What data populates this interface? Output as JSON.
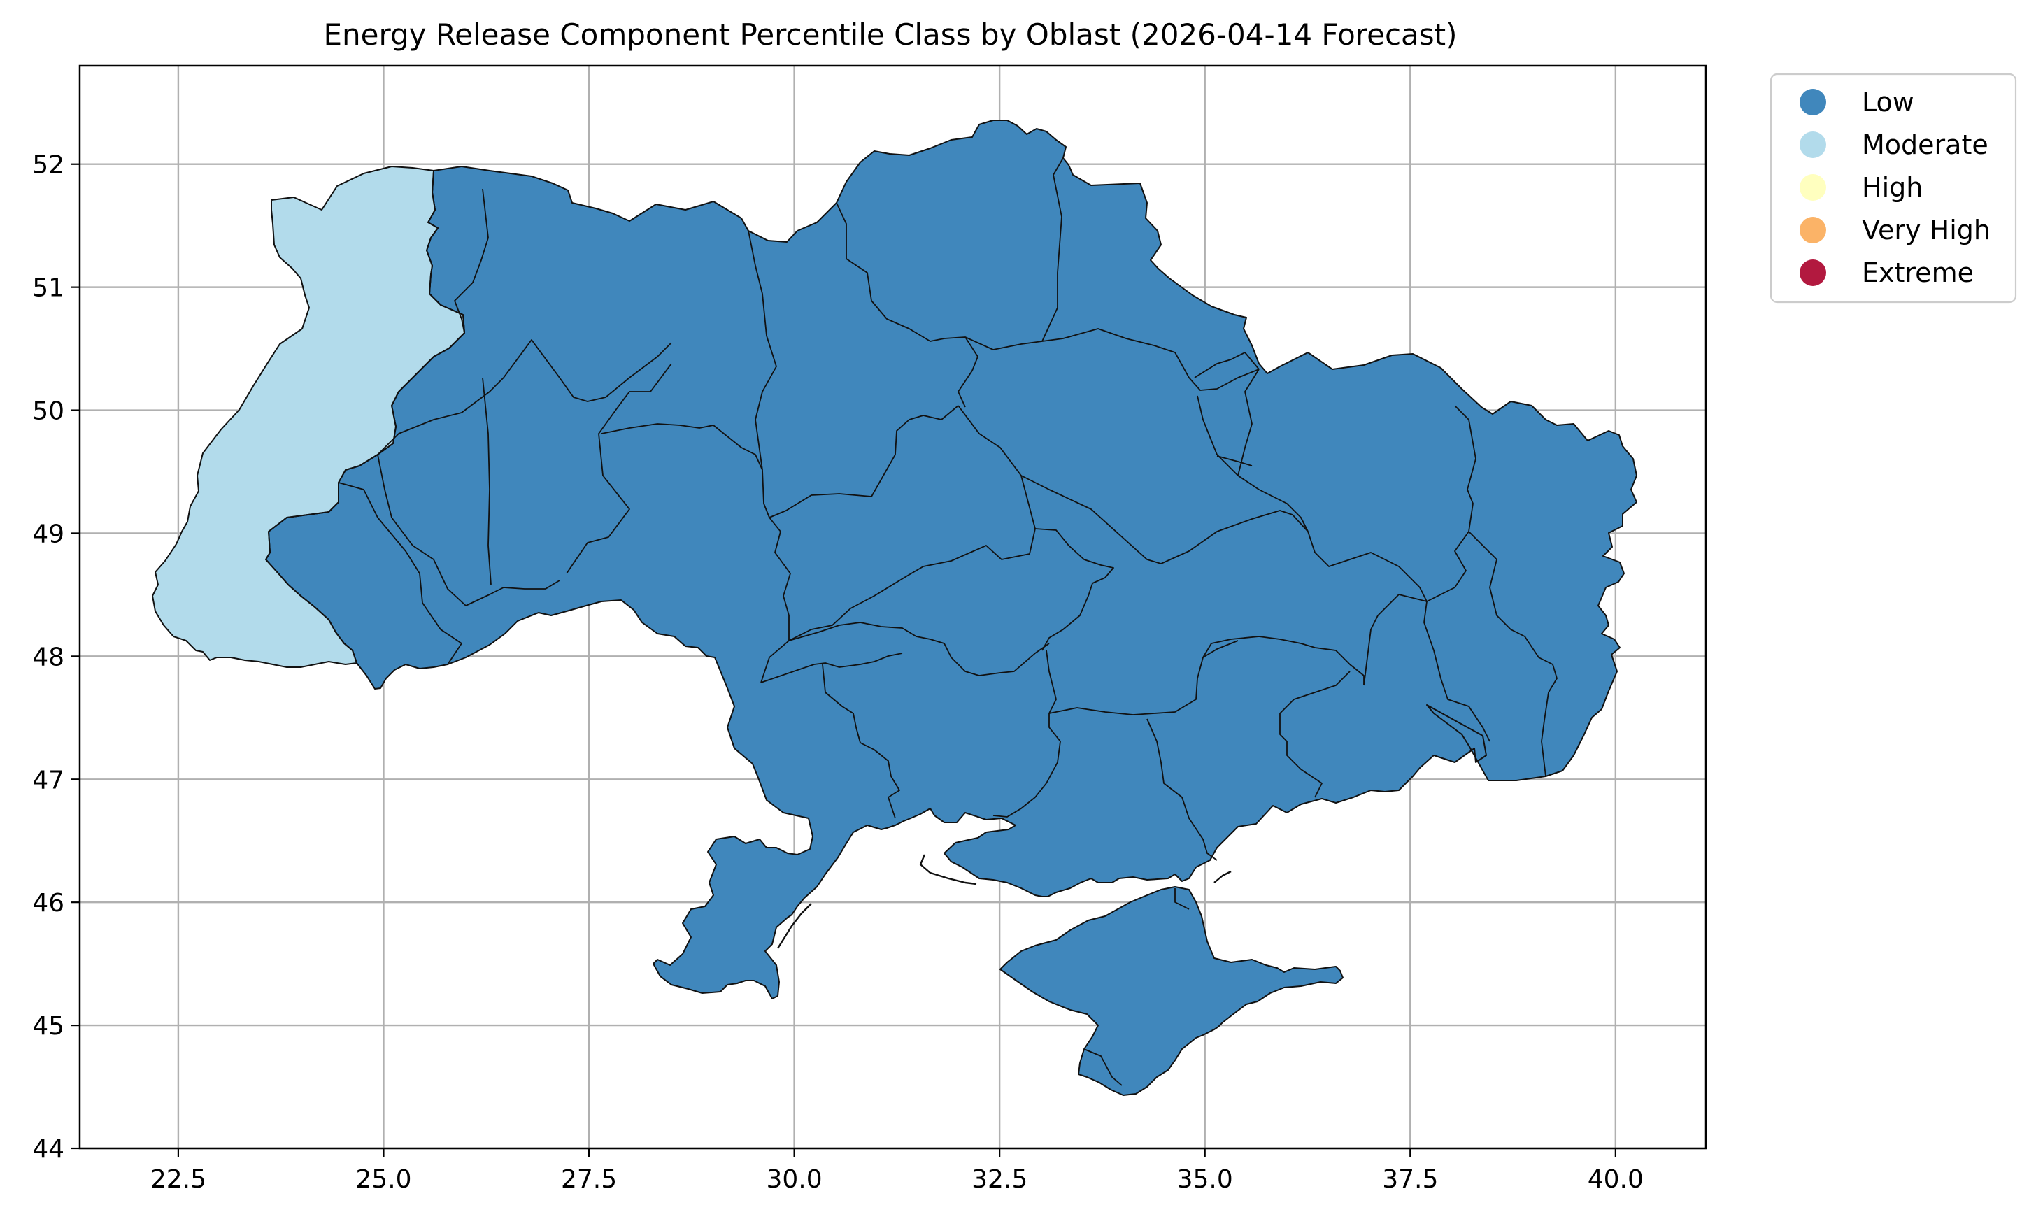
{
  "chart_data": {
    "type": "choropleth-map",
    "title": "Energy Release Component Percentile Class by Oblast (2026-04-14 Forecast)",
    "x_ticks": [
      "22.5",
      "25.0",
      "27.5",
      "30.0",
      "32.5",
      "35.0",
      "37.5",
      "40.0"
    ],
    "y_ticks": [
      "44",
      "45",
      "46",
      "47",
      "48",
      "49",
      "50",
      "51",
      "52"
    ],
    "xlim": [
      21.3,
      41.1
    ],
    "ylim": [
      44.0,
      52.8
    ],
    "grid": true,
    "legend": {
      "placement": "outside-top-right",
      "entries": [
        {
          "label": "Low",
          "color": "#4087bc"
        },
        {
          "label": "Moderate",
          "color": "#b2dbeb"
        },
        {
          "label": "High",
          "color": "#ffffbf"
        },
        {
          "label": "Very High",
          "color": "#fbb367"
        },
        {
          "label": "Extreme",
          "color": "#b2193f"
        }
      ]
    },
    "class_colors": {
      "Low": "#4087bc",
      "Moderate": "#b2dbeb"
    }
  }
}
